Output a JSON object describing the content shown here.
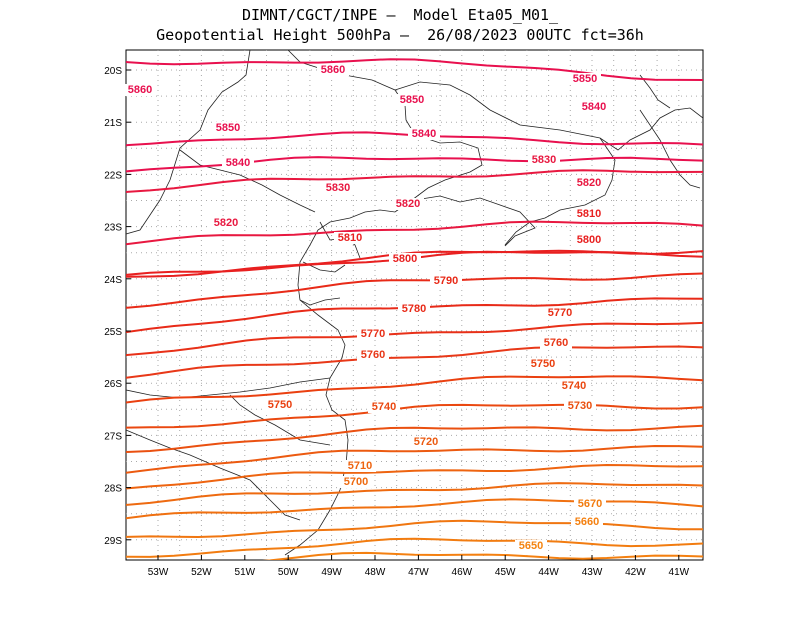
{
  "title": {
    "line1": "DIMNT/CGCT/INPE –  Model Eta05_M01_",
    "line2": "Geopotential Height 500hPa –  26/08/2023 00UTC fct=36h"
  },
  "axes": {
    "lat_ticks": [
      "20S",
      "21S",
      "22S",
      "23S",
      "24S",
      "25S",
      "26S",
      "27S",
      "28S",
      "29S"
    ],
    "lon_ticks": [
      "53W",
      "52W",
      "51W",
      "50W",
      "49W",
      "48W",
      "47W",
      "46W",
      "45W",
      "44W",
      "43W",
      "42W",
      "41W"
    ]
  },
  "contours": [
    {
      "v": 5860,
      "color": "#e8104e",
      "labels": [
        "5860",
        "5860"
      ]
    },
    {
      "v": 5850,
      "color": "#e8104e",
      "labels": [
        "5850",
        "5850",
        "5850"
      ]
    },
    {
      "v": 5840,
      "color": "#e8104e",
      "labels": [
        "5840",
        "5840",
        "5840"
      ]
    },
    {
      "v": 5830,
      "color": "#e81840",
      "labels": [
        "5830",
        "5830"
      ]
    },
    {
      "v": 5820,
      "color": "#e81840",
      "labels": [
        "5820",
        "5820",
        "5820"
      ]
    },
    {
      "v": 5810,
      "color": "#e82020",
      "labels": [
        "5810",
        "5810"
      ]
    },
    {
      "v": 5800,
      "color": "#e82020",
      "labels": [
        "5800",
        "5800"
      ]
    },
    {
      "v": 5790,
      "color": "#e82a18",
      "labels": [
        "5790"
      ]
    },
    {
      "v": 5780,
      "color": "#e82a18",
      "labels": [
        "5780"
      ]
    },
    {
      "v": 5770,
      "color": "#e83018",
      "labels": [
        "5770",
        "5770"
      ]
    },
    {
      "v": 5760,
      "color": "#e83818",
      "labels": [
        "5760",
        "5760"
      ]
    },
    {
      "v": 5750,
      "color": "#ea4010",
      "labels": [
        "5750",
        "5750"
      ]
    },
    {
      "v": 5740,
      "color": "#ea4810",
      "labels": [
        "5740",
        "5740"
      ]
    },
    {
      "v": 5730,
      "color": "#ea5010",
      "labels": [
        "5730"
      ]
    },
    {
      "v": 5720,
      "color": "#ec5a10",
      "labels": [
        "5720"
      ]
    },
    {
      "v": 5710,
      "color": "#ee6410",
      "labels": [
        "5710"
      ]
    },
    {
      "v": 5700,
      "color": "#ee6a10",
      "labels": [
        "5700"
      ]
    },
    {
      "v": 5690,
      "color": "#f07010",
      "labels": []
    },
    {
      "v": 5680,
      "color": "#f07610",
      "labels": []
    },
    {
      "v": 5670,
      "color": "#f27c10",
      "labels": [
        "5670"
      ]
    },
    {
      "v": 5660,
      "color": "#f48010",
      "labels": [
        "5660"
      ]
    },
    {
      "v": 5650,
      "color": "#f48410",
      "labels": [
        "5650"
      ]
    },
    {
      "v": 5640,
      "color": "#f48810",
      "labels": []
    }
  ]
}
